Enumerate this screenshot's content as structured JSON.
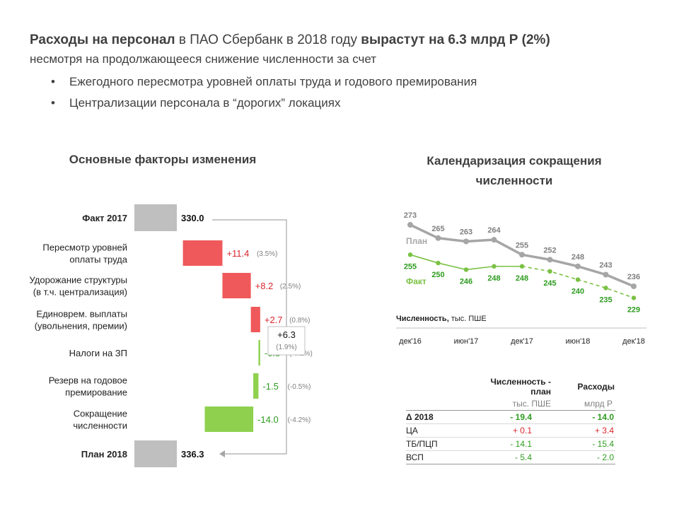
{
  "header": {
    "title_bold1": "Расходы на персонал",
    "title_normal": " в ПАО Сбербанк в 2018 году ",
    "title_bold2": "вырастут на 6.3 млрд Р (2%)",
    "subtitle": "несмотря на продолжающееся снижение численности за счет",
    "bullets": [
      "Ежегодного пересмотра уровней оплаты труда  и годового премирования",
      "Централизации  персонала в “дорогих” локациях"
    ],
    "bullet_symbol": "•"
  },
  "left_title": "Основные факторы изменения",
  "right_title_line1": "Календаризация сокращения",
  "right_title_line2": "численности",
  "colors": {
    "increase": "#f0595b",
    "decrease": "#8fd14f",
    "total": "#bfbfbf",
    "plan_line": "#a6a6a6",
    "fact_line": "#7ac143",
    "green_text": "#2e9c1f",
    "red_text": "#d9262d",
    "gray_text": "#808080"
  },
  "chart_data": [
    {
      "type": "bar",
      "subtype": "waterfall",
      "categories": [
        "Факт 2017",
        "Пересмотр уровней оплаты труда",
        "Удорожание структуры (в т.ч. централизация)",
        "Единоврем. выплаты (увольнения, премии)",
        "Налоги на ЗП",
        "Резерв на годовое премирование",
        "Сокращение численности",
        "План 2018"
      ],
      "category_lines": [
        [
          "Факт 2017"
        ],
        [
          "Пересмотр уровней",
          "оплаты труда"
        ],
        [
          "Удорожание структуры",
          "(в т.ч. централизация)"
        ],
        [
          "Единоврем. выплаты",
          "(увольнения, премии)"
        ],
        [
          "Налоги на ЗП"
        ],
        [
          "Резерв на годовое",
          "премирование"
        ],
        [
          "Сокращение",
          "численности"
        ],
        [
          "План 2018"
        ]
      ],
      "values": [
        330.0,
        11.4,
        8.2,
        2.7,
        -0.5,
        -1.5,
        -14.0,
        336.3
      ],
      "kinds": [
        "total",
        "delta",
        "delta",
        "delta",
        "delta",
        "delta",
        "delta",
        "total"
      ],
      "value_labels": [
        "330.0",
        "+11.4",
        "+8.2",
        "+2.7",
        "-0.5",
        "-1.5",
        "-14.0",
        "336.3"
      ],
      "pct_labels": [
        "",
        "(3.5%)",
        "(2.5%)",
        "(0.8%)",
        "(-0.2%)",
        "(-0.5%)",
        "(-4.2%)",
        ""
      ],
      "bracket_label": "+6.3",
      "bracket_pct": "(1.9%)"
    },
    {
      "type": "line",
      "x": [
        "дек'16",
        "мар'17",
        "июн'17",
        "сен'17",
        "дек'17",
        "мар'18",
        "июн'18",
        "сен'18",
        "дек'18"
      ],
      "x_ticks": [
        "дек'16",
        "июн'17",
        "дек'17",
        "июн'18",
        "дек'18"
      ],
      "x_tick_index": [
        0,
        2,
        4,
        6,
        8
      ],
      "series": [
        {
          "name": "План",
          "values": [
            273,
            265,
            263,
            264,
            255,
            252,
            248,
            243,
            236
          ]
        },
        {
          "name": "Факт",
          "values": [
            255,
            250,
            246,
            248,
            248,
            245,
            240,
            235,
            229
          ],
          "dashed_from_index": 4
        }
      ],
      "ylabel_bold": "Численность,",
      "ylabel_unit": " тыс. ПШЕ",
      "ylim": [
        220,
        280
      ]
    }
  ],
  "summary_table": {
    "col1_header": "Численность - план",
    "col2_header": "Расходы",
    "col1_unit": "тыс. ПШЕ",
    "col2_unit": "млрд Р",
    "rows": [
      {
        "label": "Δ 2018",
        "v1": "- 19.4",
        "v2": "- 14.0",
        "c1": "green",
        "c2": "green",
        "bold": true
      },
      {
        "label": "ЦА",
        "v1": "+ 0.1",
        "v2": "+ 3.4",
        "c1": "red",
        "c2": "red",
        "bold": false
      },
      {
        "label": "ТБ/ПЦП",
        "v1": "- 14.1",
        "v2": "- 15.4",
        "c1": "green",
        "c2": "green",
        "bold": false
      },
      {
        "label": "ВСП",
        "v1": "- 5.4",
        "v2": "- 2.0",
        "c1": "green",
        "c2": "green",
        "bold": false
      }
    ]
  }
}
